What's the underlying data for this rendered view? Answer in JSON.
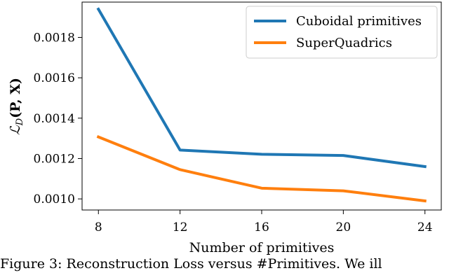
{
  "chart_data": {
    "type": "line",
    "x": [
      8,
      12,
      16,
      20,
      24
    ],
    "series": [
      {
        "name": "Cuboidal primitives",
        "color": "#1f77b4",
        "values": [
          0.00194,
          0.001242,
          0.001221,
          0.001215,
          0.00116
        ]
      },
      {
        "name": "SuperQuadrics",
        "color": "#ff7f0e",
        "values": [
          0.001307,
          0.001145,
          0.001053,
          0.00104,
          0.00099
        ]
      }
    ],
    "title": "",
    "xlabel": "Number of primitives",
    "ylabel": "ℒ",
    "ylabel_sub": "D",
    "ylabel_args": "(P, X)",
    "xticks": [
      "8",
      "12",
      "16",
      "20",
      "24"
    ],
    "yticks": [
      "0.0010",
      "0.0012",
      "0.0014",
      "0.0016",
      "0.0018"
    ],
    "xlim": [
      7.2,
      24.8
    ],
    "ylim": [
      0.000945,
      0.001975
    ],
    "grid": false,
    "legend_position": "top-right"
  },
  "caption_fragment": "Figure 3: Reconstruction Loss versus #Primitives. We ill"
}
